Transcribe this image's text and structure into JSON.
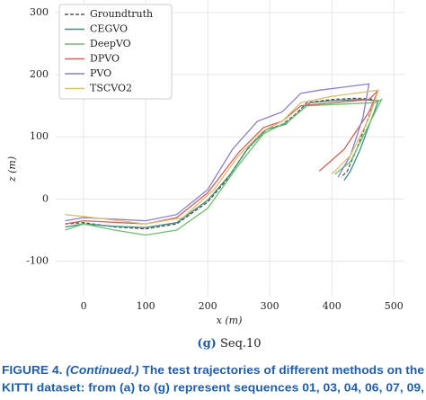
{
  "chart_data": {
    "type": "line",
    "xlabel": "x (m)",
    "ylabel": "z (m)",
    "xlim": [
      -45,
      517
    ],
    "ylim": [
      -157,
      320
    ],
    "xticks": [
      0,
      100,
      200,
      300,
      400,
      500
    ],
    "yticks": [
      -100,
      0,
      100,
      200,
      300
    ],
    "grid": true,
    "legend": "upper left",
    "series": [
      {
        "name": "Groundtruth",
        "color": "#555555",
        "linestyle": "dashed",
        "x": [
          -30,
          0,
          50,
          100,
          150,
          200,
          230,
          260,
          290,
          320,
          340,
          360,
          400,
          440,
          470,
          455,
          440,
          425,
          415
        ],
        "values": [
          -40,
          -38,
          -45,
          -48,
          -40,
          -5,
          30,
          75,
          110,
          120,
          135,
          155,
          160,
          162,
          160,
          120,
          80,
          45,
          35
        ]
      },
      {
        "name": "CEGVO",
        "color": "#3f8f7f",
        "linestyle": "solid",
        "x": [
          -30,
          0,
          50,
          100,
          150,
          200,
          235,
          265,
          295,
          325,
          345,
          365,
          400,
          445,
          475,
          460,
          445,
          430,
          420
        ],
        "values": [
          -45,
          -40,
          -44,
          -46,
          -38,
          -2,
          38,
          82,
          112,
          120,
          138,
          155,
          158,
          160,
          158,
          118,
          78,
          45,
          30
        ]
      },
      {
        "name": "DeepVO",
        "color": "#6cbf6c",
        "linestyle": "solid",
        "x": [
          -30,
          0,
          50,
          100,
          150,
          200,
          250,
          290,
          330,
          360,
          470,
          480,
          460,
          430,
          405
        ],
        "values": [
          -50,
          -40,
          -50,
          -58,
          -50,
          -15,
          55,
          105,
          125,
          150,
          155,
          160,
          120,
          60,
          40
        ]
      },
      {
        "name": "DPVO",
        "color": "#d0605a",
        "linestyle": "solid",
        "x": [
          -30,
          0,
          100,
          150,
          200,
          250,
          290,
          320,
          350,
          460,
          475,
          460,
          420,
          380
        ],
        "values": [
          -40,
          -35,
          -40,
          -30,
          10,
          75,
          115,
          125,
          150,
          160,
          175,
          140,
          80,
          45
        ]
      },
      {
        "name": "PVO",
        "color": "#8c7ec8",
        "linestyle": "solid",
        "x": [
          -30,
          0,
          100,
          150,
          200,
          240,
          280,
          320,
          350,
          380,
          460,
          450,
          430,
          410
        ],
        "values": [
          -35,
          -30,
          -35,
          -25,
          15,
          80,
          125,
          140,
          170,
          175,
          185,
          130,
          70,
          35
        ]
      },
      {
        "name": "TSCVO2",
        "color": "#d8c070",
        "linestyle": "solid",
        "x": [
          -30,
          0,
          100,
          160,
          210,
          250,
          290,
          320,
          350,
          400,
          475,
          460,
          430,
          400
        ],
        "values": [
          -25,
          -28,
          -40,
          -30,
          15,
          70,
          110,
          125,
          155,
          165,
          175,
          130,
          70,
          40
        ]
      }
    ]
  },
  "subcaption": {
    "label": "(g)",
    "text": "Seq.10"
  },
  "caption": {
    "label": "FIGURE 4.",
    "continued": "(Continued.)",
    "line1": "The test trajectories of different methods on the",
    "line2": "KITTI dataset: from (a) to (g) represent sequences 01, 03, 04, 06, 07, 09,"
  }
}
